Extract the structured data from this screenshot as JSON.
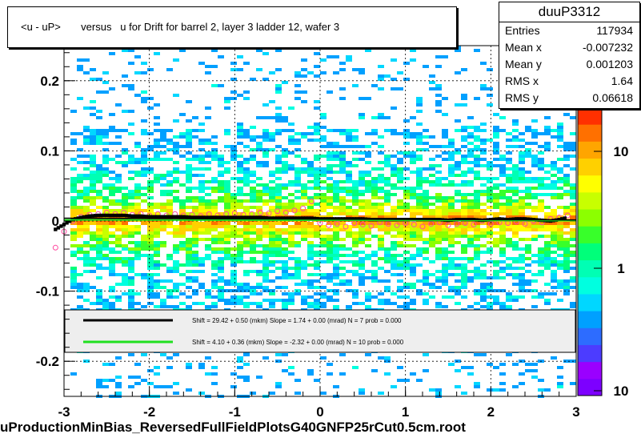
{
  "title": "<u - uP>       versus   u for Drift for barrel 2, layer 3 ladder 12, wafer 3",
  "stats": {
    "name": "duuP3312",
    "rows": [
      {
        "label": "Entries",
        "value": "117934"
      },
      {
        "label": "Mean x",
        "value": "-0.007232"
      },
      {
        "label": "Mean y",
        "value": "0.001203"
      },
      {
        "label": "RMS x",
        "value": "1.64"
      },
      {
        "label": "RMS y",
        "value": "0.06618"
      }
    ]
  },
  "footer": "uProductionMinBias_ReversedFullFieldPlotsG40GNFP25rCut0.5cm.root",
  "chart_data": {
    "type": "heatmap",
    "xlim": [
      -3,
      3
    ],
    "ylim": [
      -0.25,
      0.25
    ],
    "x_ticks": [
      "-3",
      "-2",
      "-1",
      "0",
      "1",
      "2",
      "3"
    ],
    "y_ticks": [
      "-0.2",
      "-0.1",
      "0",
      "0.1",
      "0.2"
    ],
    "z_scale": "log",
    "z_ticks": [
      "10",
      "1",
      "10"
    ],
    "grid": true,
    "colors": {
      "palette": [
        "#7d00ff",
        "#9a00ff",
        "#4c3cff",
        "#2d6cff",
        "#00a0ff",
        "#00d7ff",
        "#00ffe0",
        "#00ffb4",
        "#00ff7a",
        "#38ff2a",
        "#8cff00",
        "#c8ff00",
        "#ffff00",
        "#ffd000",
        "#ffa500",
        "#ff7000",
        "#ff3000"
      ],
      "profile_black": "#000000",
      "profile_open": "#ff4aa0",
      "fit_green": "#1fe01f"
    },
    "profile_x": [
      -3.1,
      -3.0,
      -2.9,
      -2.8,
      -2.7,
      -2.6,
      -2.5,
      -2.4,
      -2.3,
      -2.2,
      -2.1,
      -2.0,
      -1.9,
      -1.8,
      -1.7,
      -1.6,
      -1.5,
      -1.4,
      -1.3,
      -1.2,
      -1.1,
      -1.0,
      -0.9,
      -0.8,
      -0.7,
      -0.6,
      -0.5,
      -0.4,
      -0.3,
      -0.2,
      -0.1,
      0.0,
      0.1,
      0.2,
      0.3,
      0.4,
      0.5,
      0.6,
      0.7,
      0.8,
      0.9,
      1.0,
      1.1,
      1.2,
      1.3,
      1.4,
      1.5,
      1.6,
      1.7,
      1.8,
      1.9,
      2.0,
      2.1,
      2.2,
      2.3,
      2.4,
      2.5,
      2.6,
      2.7,
      2.8,
      2.9
    ],
    "series": [
      {
        "values": [
          -0.012,
          -0.005,
          0.002,
          0.005,
          0.007,
          0.008,
          0.008,
          0.008,
          0.008,
          0.007,
          0.007,
          0.006,
          0.006,
          0.006,
          0.006,
          0.006,
          0.005,
          0.005,
          0.005,
          0.005,
          0.005,
          0.005,
          0.005,
          0.005,
          0.005,
          0.004,
          0.004,
          0.004,
          0.004,
          0.004,
          0.004,
          0.003,
          0.003,
          0.003,
          0.003,
          0.003,
          0.003,
          0.002,
          0.002,
          0.002,
          0.002,
          0.002,
          0.002,
          0.002,
          0.002,
          0.002,
          0.001,
          0.002,
          0.002,
          0.002,
          0.001,
          0.002,
          0.003,
          0.002,
          0.003,
          0.003,
          0.002,
          0.001,
          0.0,
          0.002,
          0.005
        ]
      },
      {
        "values": [
          -0.038,
          -0.015,
          0.0,
          0.006,
          0.009,
          0.01,
          0.012,
          0.01,
          0.012,
          0.009,
          0.01,
          0.008,
          0.01,
          0.008,
          0.01,
          0.008,
          0.009,
          0.007,
          0.01,
          0.008,
          0.01,
          0.011,
          0.009,
          0.01,
          0.012,
          0.011,
          0.014,
          0.012,
          0.015,
          0.018,
          0.028,
          -0.003,
          -0.006,
          -0.004,
          -0.008,
          -0.003,
          -0.005,
          -0.007,
          -0.002,
          -0.004,
          -0.006,
          -0.003,
          -0.005,
          -0.008,
          -0.004,
          -0.002,
          -0.006,
          -0.004,
          -0.003,
          -0.005,
          0.0,
          -0.004,
          -0.002,
          -0.003,
          -0.001,
          -0.004,
          0.0,
          -0.002,
          0.003,
          0.005,
          0.008
        ]
      }
    ],
    "legend": [
      {
        "color": "#000000",
        "text": "Shift =    29.42 + 0.50 (mkm) Slope =    1.74 + 0.00 (mrad)  N = 7 prob = 0.000"
      },
      {
        "color": "#1fe01f",
        "text": "Shift =    4.10 + 0.36 (mkm) Slope =   -2.32 + 0.00 (mrad)  N = 10 prob = 0.000"
      }
    ]
  }
}
